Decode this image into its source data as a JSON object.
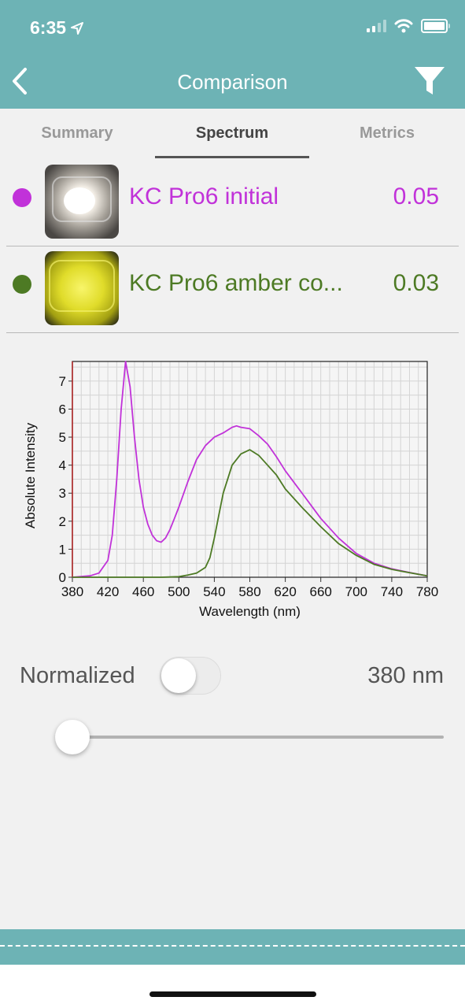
{
  "status_bar": {
    "time": "6:35"
  },
  "nav": {
    "title": "Comparison"
  },
  "tabs": [
    {
      "label": "Summary",
      "active": false
    },
    {
      "label": "Spectrum",
      "active": true
    },
    {
      "label": "Metrics",
      "active": false
    }
  ],
  "items": [
    {
      "name": "KC Pro6 initial",
      "value": "0.05",
      "color": "#c132d9"
    },
    {
      "name": "KC Pro6 amber co...",
      "value": "0.03",
      "color": "#4d7a24"
    }
  ],
  "controls": {
    "normalized_label": "Normalized",
    "normalized_on": false,
    "wavelength_readout": "380 nm",
    "slider_value": 380
  },
  "chart_data": {
    "type": "line",
    "xlabel": "Wavelength (nm)",
    "ylabel": "Absolute Intensity",
    "xlim": [
      380,
      780
    ],
    "ylim": [
      0,
      7.7
    ],
    "x_ticks": [
      "380",
      "420",
      "460",
      "500",
      "540",
      "580",
      "620",
      "660",
      "700",
      "740",
      "780"
    ],
    "y_ticks": [
      "0",
      "1",
      "2",
      "3",
      "4",
      "5",
      "6",
      "7"
    ],
    "grid": true,
    "series": [
      {
        "color": "#c132d9",
        "x": [
          380,
          400,
          410,
          420,
          425,
          430,
          435,
          440,
          445,
          450,
          455,
          460,
          465,
          470,
          475,
          480,
          485,
          490,
          495,
          500,
          510,
          520,
          530,
          540,
          550,
          560,
          565,
          570,
          580,
          590,
          600,
          610,
          620,
          640,
          660,
          680,
          700,
          720,
          740,
          760,
          780
        ],
        "y": [
          0,
          0.05,
          0.15,
          0.6,
          1.5,
          3.5,
          6.0,
          7.7,
          6.8,
          5.0,
          3.5,
          2.5,
          1.9,
          1.5,
          1.3,
          1.25,
          1.4,
          1.7,
          2.1,
          2.5,
          3.4,
          4.2,
          4.7,
          5.0,
          5.15,
          5.35,
          5.4,
          5.35,
          5.3,
          5.05,
          4.75,
          4.3,
          3.8,
          2.95,
          2.1,
          1.4,
          0.85,
          0.5,
          0.3,
          0.17,
          0.05
        ]
      },
      {
        "color": "#4d7a24",
        "x": [
          380,
          480,
          500,
          510,
          520,
          530,
          535,
          540,
          545,
          550,
          560,
          570,
          580,
          590,
          600,
          610,
          620,
          640,
          660,
          680,
          700,
          720,
          740,
          760,
          780
        ],
        "y": [
          0,
          0,
          0.02,
          0.08,
          0.15,
          0.35,
          0.7,
          1.4,
          2.2,
          3.0,
          4.0,
          4.4,
          4.55,
          4.35,
          4.0,
          3.65,
          3.15,
          2.45,
          1.8,
          1.2,
          0.78,
          0.46,
          0.28,
          0.16,
          0.05
        ]
      }
    ]
  }
}
